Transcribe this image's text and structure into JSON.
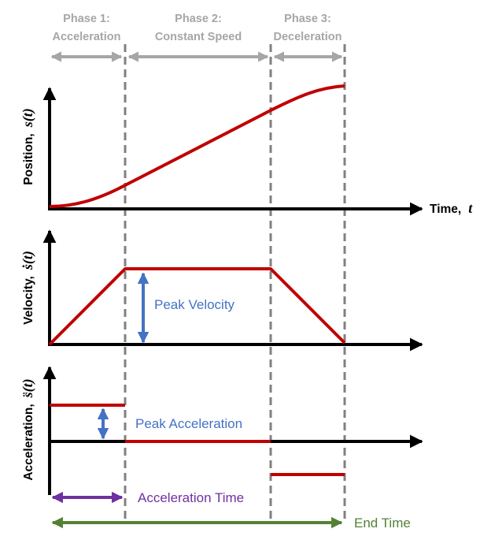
{
  "phases": [
    {
      "line1": "Phase 1:",
      "line2": "Acceleration"
    },
    {
      "line1": "Phase 2:",
      "line2": "Constant Speed"
    },
    {
      "line1": "Phase 3:",
      "line2": "Deceleration"
    }
  ],
  "axes": {
    "time": {
      "word": "Time,",
      "symbol": "t"
    },
    "position": {
      "word": "Position,",
      "symbol": "s(t)"
    },
    "velocity": {
      "word": "Velocity,",
      "symbol": "ṡ(t)"
    },
    "acceleration": {
      "word": "Acceleration,",
      "symbol": "s̈(t)"
    }
  },
  "annotations": {
    "peak_velocity": "Peak Velocity",
    "peak_acceleration": "Peak Acceleration",
    "acceleration_time": "Acceleration Time",
    "end_time": "End Time"
  },
  "colors": {
    "curve": "#c00000",
    "phase_gray": "#a6a6a6",
    "dashed": "#808080",
    "blue": "#4472c4",
    "purple": "#7030a0",
    "green": "#548235"
  }
}
